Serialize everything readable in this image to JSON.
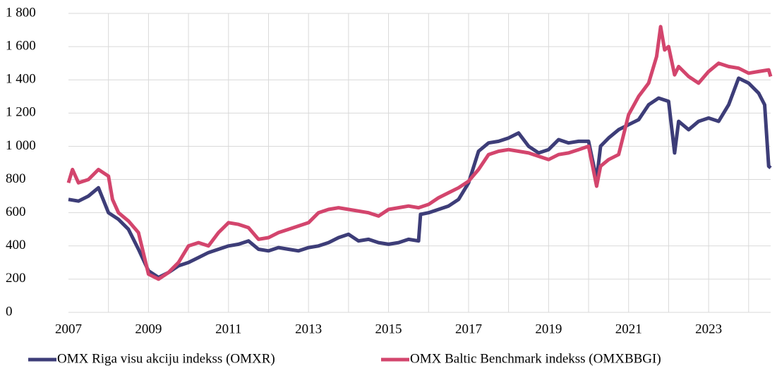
{
  "chart_data": {
    "type": "line",
    "xlim": [
      2007,
      2024.55
    ],
    "xticks": [
      2007,
      2009,
      2011,
      2013,
      2015,
      2017,
      2019,
      2021,
      2023
    ],
    "xgrid": [
      2008,
      2009,
      2010,
      2011,
      2012,
      2013,
      2014,
      2015,
      2016,
      2017,
      2018,
      2019,
      2020,
      2021,
      2022,
      2023,
      2024
    ],
    "ylim": [
      0,
      1800
    ],
    "yticks": [
      0,
      200,
      400,
      600,
      800,
      {
        "value": 1000,
        "label": "1 000"
      },
      {
        "value": 1200,
        "label": "1 200"
      },
      {
        "value": 1400,
        "label": "1 400"
      },
      {
        "value": 1600,
        "label": "1 600"
      },
      {
        "value": 1800,
        "label": "1 800"
      }
    ],
    "grid": true,
    "legend": "bottom",
    "series": [
      {
        "name": "OMX Riga visu akciju indekss (OMXR)",
        "color": "#3d3d78",
        "x": [
          2007.0,
          2007.25,
          2007.5,
          2007.75,
          2008.0,
          2008.25,
          2008.5,
          2008.75,
          2009.0,
          2009.25,
          2009.5,
          2009.75,
          2010.0,
          2010.25,
          2010.5,
          2010.75,
          2011.0,
          2011.25,
          2011.5,
          2011.75,
          2012.0,
          2012.25,
          2012.5,
          2012.75,
          2013.0,
          2013.25,
          2013.5,
          2013.75,
          2014.0,
          2014.25,
          2014.5,
          2014.75,
          2015.0,
          2015.25,
          2015.5,
          2015.75,
          2015.8,
          2016.0,
          2016.5,
          2016.75,
          2017.0,
          2017.25,
          2017.5,
          2017.75,
          2018.0,
          2018.25,
          2018.5,
          2018.75,
          2019.0,
          2019.25,
          2019.5,
          2019.75,
          2020.0,
          2020.2,
          2020.3,
          2020.5,
          2020.75,
          2021.0,
          2021.25,
          2021.5,
          2021.75,
          2022.0,
          2022.15,
          2022.25,
          2022.5,
          2022.75,
          2023.0,
          2023.25,
          2023.5,
          2023.75,
          2024.0,
          2024.25,
          2024.4,
          2024.5,
          2024.55
        ],
        "values": [
          680,
          670,
          700,
          750,
          600,
          560,
          500,
          380,
          250,
          210,
          240,
          280,
          300,
          330,
          360,
          380,
          400,
          410,
          430,
          380,
          370,
          390,
          380,
          370,
          390,
          400,
          420,
          450,
          470,
          430,
          440,
          420,
          410,
          420,
          440,
          430,
          590,
          600,
          640,
          680,
          780,
          970,
          1020,
          1030,
          1050,
          1080,
          1000,
          960,
          980,
          1040,
          1020,
          1030,
          1030,
          800,
          1000,
          1050,
          1100,
          1130,
          1160,
          1250,
          1290,
          1270,
          960,
          1150,
          1100,
          1150,
          1170,
          1150,
          1250,
          1410,
          1380,
          1320,
          1250,
          880,
          870
        ]
      },
      {
        "name": "OMX Baltic Benchmark indekss (OMXBBGI)",
        "color": "#d3456d",
        "x": [
          2007.0,
          2007.1,
          2007.25,
          2007.5,
          2007.75,
          2008.0,
          2008.1,
          2008.25,
          2008.5,
          2008.75,
          2008.85,
          2009.0,
          2009.25,
          2009.5,
          2009.75,
          2010.0,
          2010.25,
          2010.5,
          2010.75,
          2011.0,
          2011.25,
          2011.5,
          2011.75,
          2012.0,
          2012.25,
          2012.5,
          2012.75,
          2013.0,
          2013.25,
          2013.5,
          2013.75,
          2014.0,
          2014.25,
          2014.5,
          2014.75,
          2015.0,
          2015.25,
          2015.5,
          2015.75,
          2016.0,
          2016.25,
          2016.5,
          2016.75,
          2017.0,
          2017.25,
          2017.5,
          2017.75,
          2018.0,
          2018.25,
          2018.5,
          2018.75,
          2019.0,
          2019.25,
          2019.5,
          2019.75,
          2020.0,
          2020.2,
          2020.3,
          2020.5,
          2020.75,
          2021.0,
          2021.25,
          2021.5,
          2021.7,
          2021.8,
          2021.9,
          2022.0,
          2022.15,
          2022.25,
          2022.5,
          2022.75,
          2023.0,
          2023.25,
          2023.5,
          2023.75,
          2024.0,
          2024.25,
          2024.5,
          2024.55
        ],
        "values": [
          780,
          860,
          780,
          800,
          860,
          820,
          680,
          600,
          550,
          480,
          380,
          230,
          200,
          240,
          300,
          400,
          420,
          400,
          480,
          540,
          530,
          510,
          440,
          450,
          480,
          500,
          520,
          540,
          600,
          620,
          630,
          620,
          610,
          600,
          580,
          620,
          630,
          640,
          630,
          650,
          690,
          720,
          750,
          790,
          860,
          950,
          970,
          980,
          970,
          960,
          940,
          920,
          950,
          960,
          980,
          1000,
          760,
          880,
          920,
          950,
          1190,
          1300,
          1380,
          1540,
          1720,
          1580,
          1600,
          1430,
          1480,
          1420,
          1380,
          1450,
          1500,
          1480,
          1470,
          1440,
          1450,
          1460,
          1420
        ]
      }
    ]
  }
}
